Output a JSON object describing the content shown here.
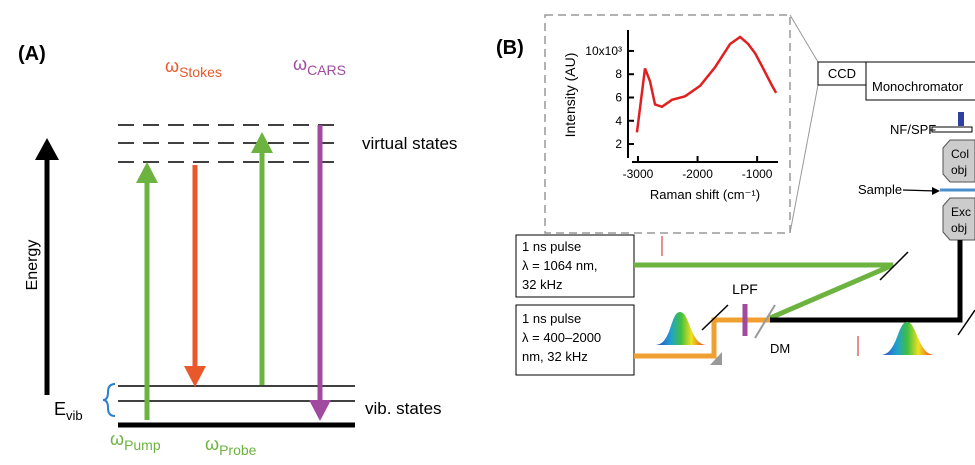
{
  "panel_a": {
    "label": "(A)",
    "energy": "Energy",
    "virtual_states": "virtual states",
    "vib_states": "vib. states",
    "e_vib": {
      "symbol": "E",
      "sub": "vib"
    },
    "stokes": {
      "symbol": "ω",
      "sub": "Stokes"
    },
    "cars": {
      "symbol": "ω",
      "sub": "CARS"
    },
    "pump": {
      "symbol": "ω",
      "sub": "Pump"
    },
    "probe": {
      "symbol": "ω",
      "sub": "Probe"
    }
  },
  "panel_b": {
    "label": "(B)",
    "ccd": "CCD",
    "monochromator": "Monochromator",
    "filter": "NF/SPF",
    "collection": [
      "Col",
      "obj"
    ],
    "sample": "Sample",
    "excitation": [
      "Exc",
      "obj"
    ],
    "lpf": "LPF",
    "dm": "DM",
    "source1": [
      "1 ns pulse",
      "λ = 1064 nm,",
      "32 kHz"
    ],
    "source2": [
      "1 ns pulse",
      "λ = 400–2000",
      "nm, 32 kHz"
    ]
  },
  "inset": {
    "type": "line",
    "x_label": "Raman shift (cm⁻¹)",
    "y_label": "Intensity (AU)",
    "color": "#e02020",
    "x": [
      -3017,
      -2882,
      -2798,
      -2714,
      -2597,
      -2429,
      -2210,
      -1958,
      -1706,
      -1454,
      -1286,
      -1151,
      -1034,
      -899,
      -748,
      -681
    ],
    "values": [
      3.0,
      8.5,
      7.4,
      5.4,
      5.2,
      5.8,
      6.1,
      7.0,
      8.6,
      10.6,
      11.2,
      10.6,
      9.8,
      8.5,
      7.0,
      6.4
    ],
    "xlim": [
      -3100,
      -650
    ],
    "ylim": [
      0.8,
      11.8
    ],
    "xticks": [
      -3000,
      -2000,
      -1000
    ],
    "yticks": [
      2,
      4,
      6,
      8,
      {
        "value": 10,
        "label": "10x10³"
      }
    ]
  }
}
